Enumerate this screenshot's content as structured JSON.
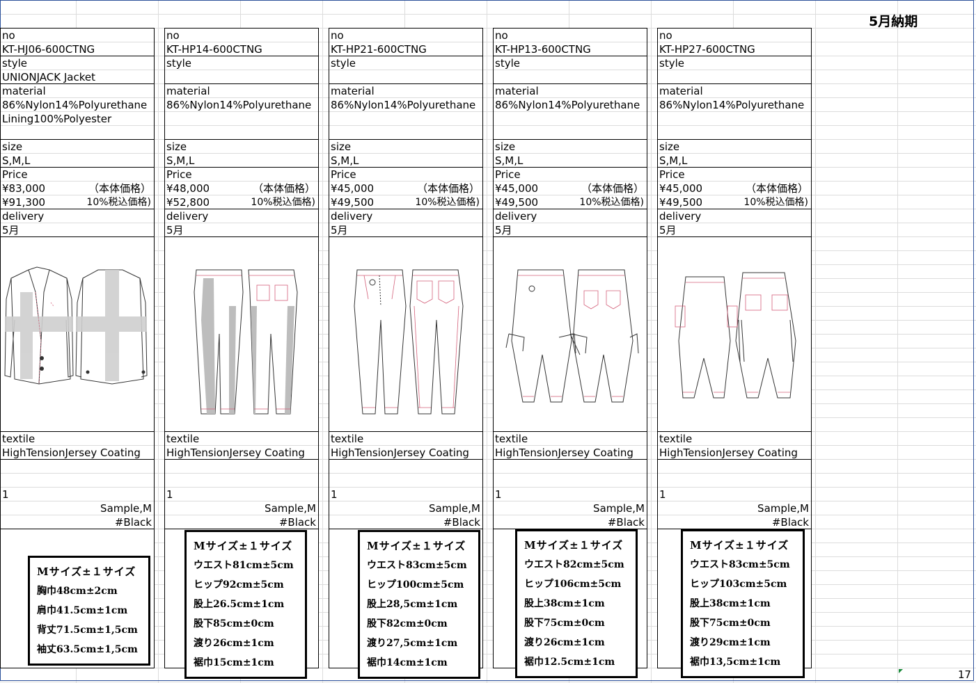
{
  "page": {
    "title": "5月納期",
    "page_number": "17"
  },
  "labels": {
    "no": "no",
    "style": "style",
    "material": "material",
    "size": "size",
    "price": "Price",
    "delivery": "delivery",
    "textile": "textile",
    "body_price": "（本体価格）",
    "tax_price": "10%税込価格)"
  },
  "cards": [
    {
      "no": "KT-HJ06-600CTNG",
      "style": "UNIONJACK Jacket",
      "material": [
        "86%Nylon14%Polyurethane",
        "Lining100%Polyester"
      ],
      "size": "S,M,L",
      "price": "¥83,000",
      "price_tax": "¥91,300",
      "delivery": "5月",
      "textile": "HighTensionJersey Coating",
      "qty": "1",
      "sample": "Sample,M",
      "color": "#Black",
      "garment": "jacket",
      "spec": [
        "Mサイズ±１サイズ",
        "胸巾48cm±2cm",
        "肩巾41.5cm±1cm",
        "背丈71.5cm±1,5cm",
        "袖丈63.5cm±1,5cm"
      ]
    },
    {
      "no": "KT-HP14-600CTNG",
      "style": "",
      "material": [
        "86%Nylon14%Polyurethane",
        ""
      ],
      "size": "S,M,L",
      "price": "¥48,000",
      "price_tax": "¥52,800",
      "delivery": "5月",
      "textile": "HighTensionJersey Coating",
      "qty": "1",
      "sample": "Sample,M",
      "color": "#Black",
      "garment": "skinny-pants",
      "spec": [
        "Mサイズ±１サイズ",
        "ウエスト81cm±5cm",
        "ヒップ92cm±5cm",
        "股上26.5cm±1cm",
        "股下85cm±0cm",
        "渡り26cm±1cm",
        "裾巾15cm±1cm"
      ]
    },
    {
      "no": "KT-HP21-600CTNG",
      "style": "",
      "material": [
        "86%Nylon14%Polyurethane",
        ""
      ],
      "size": "S,M,L",
      "price": "¥45,000",
      "price_tax": "¥49,500",
      "delivery": "5月",
      "textile": "HighTensionJersey Coating",
      "qty": "1",
      "sample": "Sample,M",
      "color": "#Black",
      "garment": "tapered-pants",
      "spec": [
        "Mサイズ±１サイズ",
        "ウエスト83cm±5cm",
        "ヒップ100cm±5cm",
        "股上28,5cm±1cm",
        "股下82cm±0cm",
        "渡り27,5cm±1cm",
        "裾巾14cm±1cm"
      ]
    },
    {
      "no": "KT-HP13-600CTNG",
      "style": "",
      "material": [
        "86%Nylon14%Polyurethane",
        ""
      ],
      "size": "S,M,L",
      "price": "¥45,000",
      "price_tax": "¥49,500",
      "delivery": "5月",
      "textile": "HighTensionJersey Coating",
      "qty": "1",
      "sample": "Sample,M",
      "color": "#Black",
      "garment": "sarouel-pants",
      "spec": [
        "Mサイズ±１サイズ",
        "ウエスト82cm±5cm",
        "ヒップ106cm±5cm",
        "股上38cm±1cm",
        "股下75cm±0cm",
        "渡り26cm±1cm",
        "裾巾12.5cm±1cm"
      ]
    },
    {
      "no": "KT-HP27-600CTNG",
      "style": "",
      "material": [
        "86%Nylon14%Polyurethane",
        ""
      ],
      "size": "S,M,L",
      "price": "¥45,000",
      "price_tax": "¥49,500",
      "delivery": "5月",
      "textile": "HighTensionJersey Coating",
      "qty": "1",
      "sample": "Sample,M",
      "color": "#Black",
      "garment": "cargo-sarouel-pants",
      "spec": [
        "Mサイズ±１サイズ",
        "ウエスト83cm±5cm",
        "ヒップ103cm±5cm",
        "股上38cm±1cm",
        "股下75cm±0cm",
        "渡り29cm±1cm",
        "裾巾13,5cm±1cm"
      ]
    }
  ]
}
